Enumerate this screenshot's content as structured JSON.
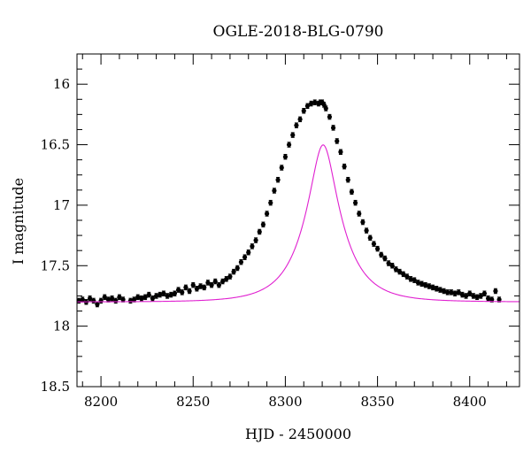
{
  "chart_data": {
    "type": "scatter",
    "title": "OGLE-2018-BLG-0790",
    "xlabel": "HJD - 2450000",
    "ylabel": "I magnitude",
    "xlim": [
      8187,
      8427
    ],
    "ylim": [
      18.5,
      15.75
    ],
    "y_inverted": true,
    "x_major_ticks": [
      8200,
      8250,
      8300,
      8350,
      8400
    ],
    "x_tick_labels": [
      "8200",
      "8250",
      "8300",
      "8350",
      "8400"
    ],
    "y_major_ticks": [
      16,
      16.5,
      17,
      17.5,
      18,
      18.5
    ],
    "y_tick_labels": [
      "16",
      "16.5",
      "17",
      "17.5",
      "18",
      "18.5"
    ],
    "grid": false,
    "marker_color": "#000000",
    "model_color": "#e020d0",
    "model": {
      "type": "point-lens microlensing fit",
      "t0": 8320.5,
      "tE": 20,
      "u0": 0.3135,
      "baseline_mag": 17.8
    },
    "series": [
      {
        "kind": "points",
        "x": [
          8188,
          8190,
          8192,
          8194,
          8196,
          8198,
          8200,
          8202,
          8204,
          8206,
          8208,
          8210,
          8212,
          8216,
          8218,
          8220,
          8222,
          8224,
          8226,
          8228,
          8230,
          8232,
          8234,
          8236,
          8238,
          8240,
          8242,
          8244,
          8246,
          8248,
          8250,
          8252,
          8254,
          8256,
          8258,
          8260,
          8262,
          8264,
          8266,
          8268,
          8270,
          8272,
          8274,
          8276,
          8278,
          8280,
          8282,
          8284,
          8286,
          8288,
          8290,
          8292,
          8294,
          8296,
          8298,
          8300,
          8302,
          8304,
          8306,
          8308,
          8310,
          8312,
          8314,
          8316,
          8318,
          8319,
          8320,
          8321,
          8322,
          8324,
          8326,
          8328,
          8330,
          8332,
          8334,
          8336,
          8338,
          8340,
          8342,
          8344,
          8346,
          8348,
          8350,
          8352,
          8354,
          8356,
          8358,
          8360,
          8362,
          8364,
          8366,
          8368,
          8370,
          8372,
          8374,
          8376,
          8378,
          8380,
          8382,
          8384,
          8386,
          8388,
          8390,
          8392,
          8394,
          8396,
          8398,
          8400,
          8402,
          8404,
          8406,
          8408,
          8410,
          8412,
          8414,
          8416
        ],
        "y": [
          17.79,
          17.78,
          17.8,
          17.77,
          17.79,
          17.82,
          17.79,
          17.76,
          17.78,
          17.77,
          17.79,
          17.76,
          17.78,
          17.79,
          17.78,
          17.76,
          17.77,
          17.76,
          17.74,
          17.77,
          17.75,
          17.74,
          17.73,
          17.75,
          17.74,
          17.73,
          17.7,
          17.72,
          17.68,
          17.71,
          17.66,
          17.69,
          17.67,
          17.68,
          17.64,
          17.66,
          17.63,
          17.66,
          17.63,
          17.61,
          17.59,
          17.55,
          17.52,
          17.47,
          17.43,
          17.39,
          17.34,
          17.29,
          17.22,
          17.16,
          17.07,
          16.98,
          16.88,
          16.79,
          16.69,
          16.6,
          16.5,
          16.42,
          16.34,
          16.29,
          16.22,
          16.18,
          16.16,
          16.15,
          16.16,
          16.15,
          16.15,
          16.17,
          16.2,
          16.27,
          16.36,
          16.47,
          16.56,
          16.68,
          16.79,
          16.89,
          16.98,
          17.07,
          17.14,
          17.21,
          17.27,
          17.32,
          17.36,
          17.41,
          17.44,
          17.48,
          17.5,
          17.53,
          17.55,
          17.57,
          17.59,
          17.61,
          17.62,
          17.64,
          17.65,
          17.66,
          17.67,
          17.68,
          17.69,
          17.7,
          17.71,
          17.72,
          17.72,
          17.73,
          17.72,
          17.74,
          17.75,
          17.73,
          17.75,
          17.76,
          17.75,
          17.73,
          17.77,
          17.78,
          17.71,
          17.78
        ],
        "yerr": 0.02
      }
    ]
  }
}
